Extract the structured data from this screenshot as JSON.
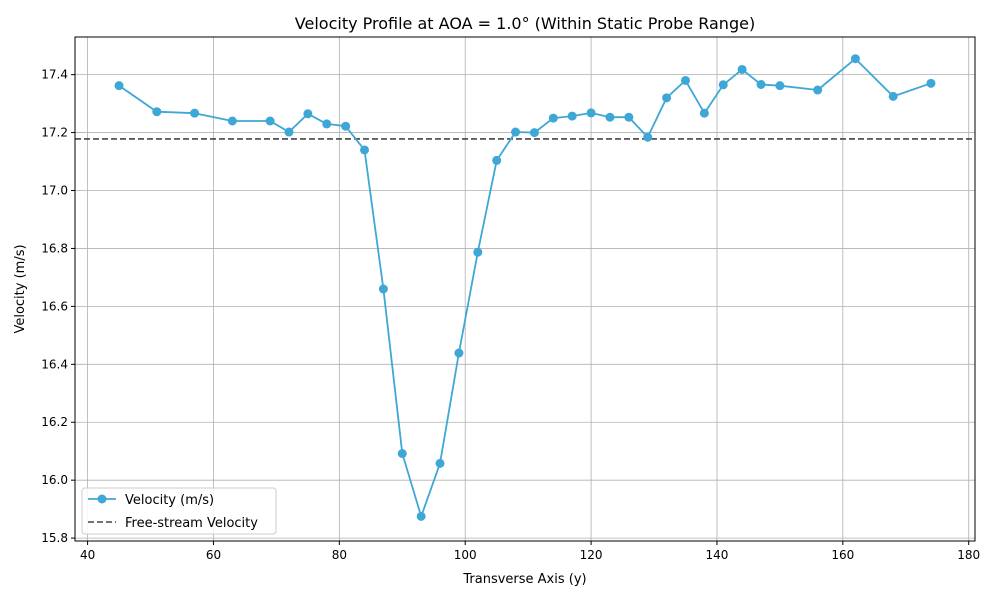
{
  "chart_data": {
    "type": "line",
    "title": "Velocity Profile at AOA = 1.0° (Within Static Probe Range)",
    "xlabel": "Transverse Axis (y)",
    "ylabel": "Velocity (m/s)",
    "xlim": [
      38,
      181
    ],
    "ylim": [
      15.79,
      17.53
    ],
    "xticks": [
      40,
      60,
      80,
      100,
      120,
      140,
      160,
      180
    ],
    "yticks": [
      15.8,
      16.0,
      16.2,
      16.4,
      16.6,
      16.8,
      17.0,
      17.2,
      17.4
    ],
    "grid": true,
    "legend_position": "lower-left",
    "series": [
      {
        "name": "Velocity (m/s)",
        "color": "#3fa7d6",
        "marker": "circle",
        "x": [
          45,
          51,
          57,
          63,
          69,
          72,
          75,
          78,
          81,
          84,
          87,
          90,
          93,
          96,
          99,
          102,
          105,
          108,
          111,
          114,
          117,
          120,
          123,
          126,
          129,
          132,
          135,
          138,
          141,
          144,
          147,
          150,
          156,
          162,
          168,
          174
        ],
        "y": [
          17.362,
          17.272,
          17.267,
          17.24,
          17.24,
          17.202,
          17.265,
          17.23,
          17.222,
          17.14,
          16.66,
          16.092,
          15.875,
          16.058,
          16.439,
          16.787,
          17.104,
          17.202,
          17.2,
          17.25,
          17.257,
          17.268,
          17.253,
          17.253,
          17.184,
          17.32,
          17.38,
          17.267,
          17.365,
          17.418,
          17.366,
          17.362,
          17.347,
          17.455,
          17.325,
          17.37
        ]
      }
    ],
    "reference_line": {
      "name": "Free-stream Velocity",
      "y": 17.178,
      "color": "#444444",
      "style": "dashed"
    }
  }
}
